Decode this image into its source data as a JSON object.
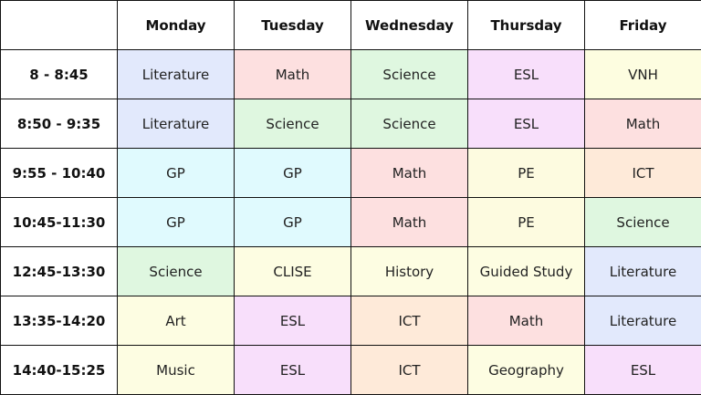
{
  "days": [
    "Monday",
    "Tuesday",
    "Wednesday",
    "Thursday",
    "Friday"
  ],
  "subject_colors": {
    "Literature": "#e2e9fc",
    "Math": "#fde0e0",
    "Science": "#dff7e0",
    "ESL": "#f8dffb",
    "VNH": "#fdfde0",
    "GP": "#e0fafe",
    "PE": "#fdfbe0",
    "ICT": "#feead9",
    "CLISE": "#fdfde2",
    "History": "#fdfde2",
    "Guided Study": "#fdfde2",
    "Art": "#fdfde2",
    "Music": "#fdfde2",
    "Geography": "#fdfde2"
  },
  "rows": [
    {
      "time": "8 - 8:45",
      "subjects": [
        "Literature",
        "Math",
        "Science",
        "ESL",
        "VNH"
      ]
    },
    {
      "time": "8:50 - 9:35",
      "subjects": [
        "Literature",
        "Science",
        "Science",
        "ESL",
        "Math"
      ]
    },
    {
      "time": "9:55 - 10:40",
      "subjects": [
        "GP",
        "GP",
        "Math",
        "PE",
        "ICT"
      ]
    },
    {
      "time": "10:45-11:30",
      "subjects": [
        "GP",
        "GP",
        "Math",
        "PE",
        "Science"
      ]
    },
    {
      "time": "12:45-13:30",
      "subjects": [
        "Science",
        "CLISE",
        "History",
        "Guided Study",
        "Literature"
      ]
    },
    {
      "time": "13:35-14:20",
      "subjects": [
        "Art",
        "ESL",
        "ICT",
        "Math",
        "Literature"
      ]
    },
    {
      "time": "14:40-15:25",
      "subjects": [
        "Music",
        "ESL",
        "ICT",
        "Geography",
        "ESL"
      ]
    }
  ]
}
